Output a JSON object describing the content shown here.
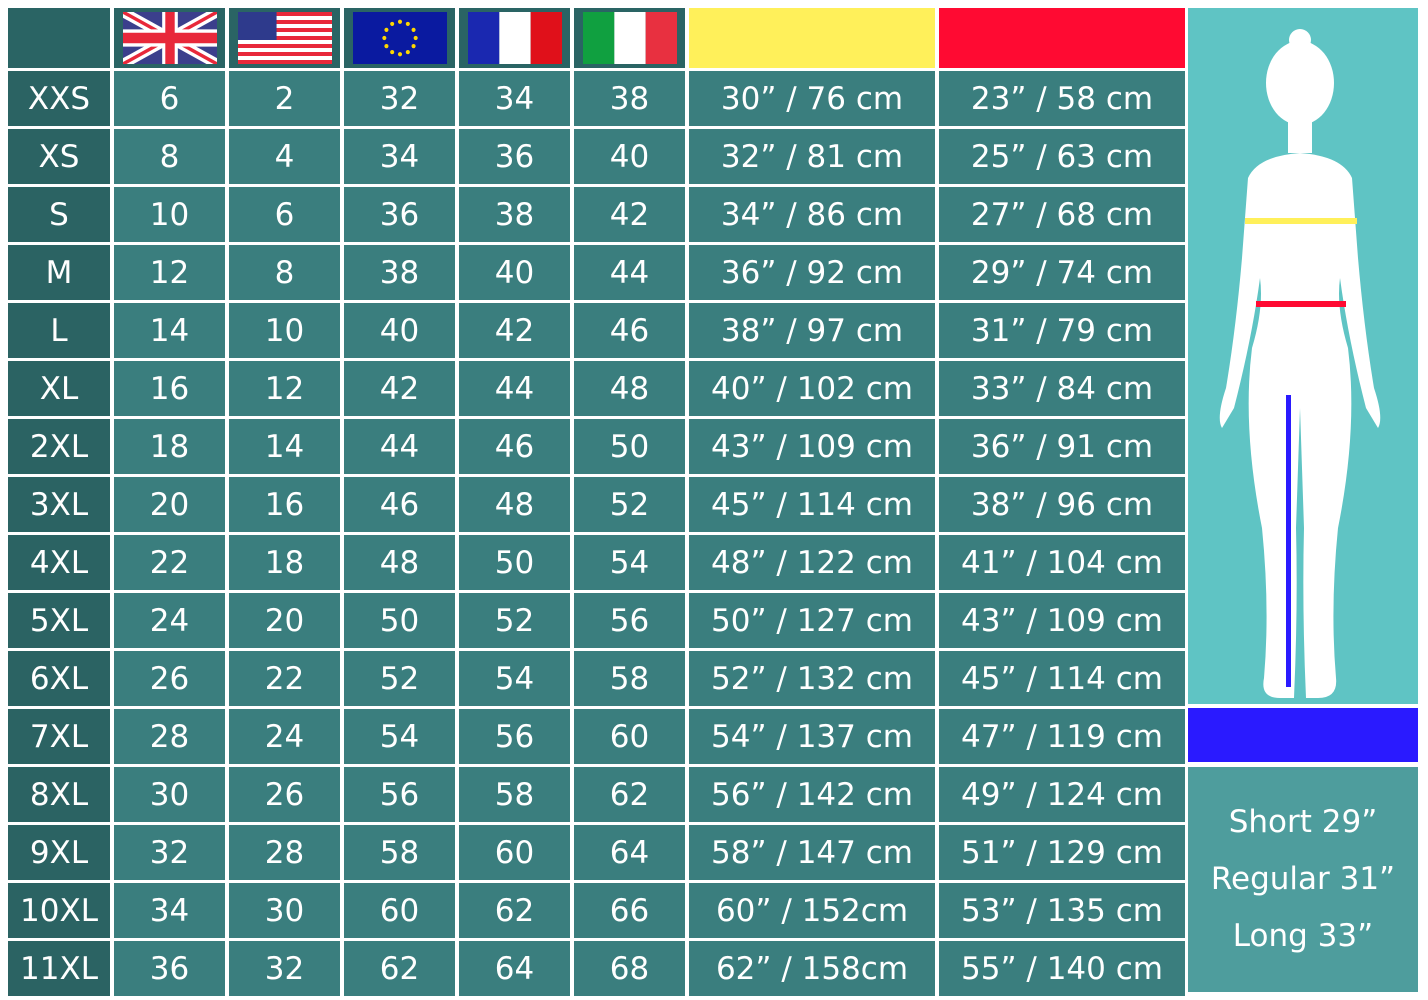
{
  "header": {
    "flags": [
      "uk-flag-icon",
      "us-flag-icon",
      "eu-flag-icon",
      "france-flag-icon",
      "italy-flag-icon"
    ],
    "chest_color": "#fff05a",
    "waist_color": "#ff0a32",
    "inseam_color": "#2a1aff"
  },
  "colors": {
    "header_bg": "#2a6464",
    "cell_bg": "#3a7e7e",
    "figure_bg": "#5fc4c4",
    "lengths_bg": "#4e9d9d"
  },
  "rows": [
    [
      "XXS",
      "6",
      "2",
      "32",
      "34",
      "38",
      "30” / 76 cm",
      "23” / 58 cm"
    ],
    [
      "XS",
      "8",
      "4",
      "34",
      "36",
      "40",
      "32” / 81 cm",
      "25” / 63 cm"
    ],
    [
      "S",
      "10",
      "6",
      "36",
      "38",
      "42",
      "34” / 86 cm",
      "27” / 68 cm"
    ],
    [
      "M",
      "12",
      "8",
      "38",
      "40",
      "44",
      "36” / 92 cm",
      "29” / 74 cm"
    ],
    [
      "L",
      "14",
      "10",
      "40",
      "42",
      "46",
      "38” / 97 cm",
      "31” / 79 cm"
    ],
    [
      "XL",
      "16",
      "12",
      "42",
      "44",
      "48",
      "40” / 102 cm",
      "33” / 84 cm"
    ],
    [
      "2XL",
      "18",
      "14",
      "44",
      "46",
      "50",
      "43” / 109 cm",
      "36” / 91 cm"
    ],
    [
      "3XL",
      "20",
      "16",
      "46",
      "48",
      "52",
      "45” / 114 cm",
      "38” / 96 cm"
    ],
    [
      "4XL",
      "22",
      "18",
      "48",
      "50",
      "54",
      "48” / 122 cm",
      "41” / 104 cm"
    ],
    [
      "5XL",
      "24",
      "20",
      "50",
      "52",
      "56",
      "50” / 127 cm",
      "43” / 109 cm"
    ],
    [
      "6XL",
      "26",
      "22",
      "52",
      "54",
      "58",
      "52” / 132 cm",
      "45” / 114 cm"
    ],
    [
      "7XL",
      "28",
      "24",
      "54",
      "56",
      "60",
      "54” / 137 cm",
      "47” / 119 cm"
    ],
    [
      "8XL",
      "30",
      "26",
      "56",
      "58",
      "62",
      "56” / 142 cm",
      "49” / 124 cm"
    ],
    [
      "9XL",
      "32",
      "28",
      "58",
      "60",
      "64",
      "58” / 147 cm",
      "51” / 129 cm"
    ],
    [
      "10XL",
      "34",
      "30",
      "60",
      "62",
      "66",
      "60” / 152cm",
      "53” / 135 cm"
    ],
    [
      "11XL",
      "36",
      "32",
      "62",
      "64",
      "68",
      "62” / 158cm",
      "55” / 140 cm"
    ]
  ],
  "lengths": [
    "Short 29”",
    "Regular 31”",
    "Long 33”"
  ]
}
